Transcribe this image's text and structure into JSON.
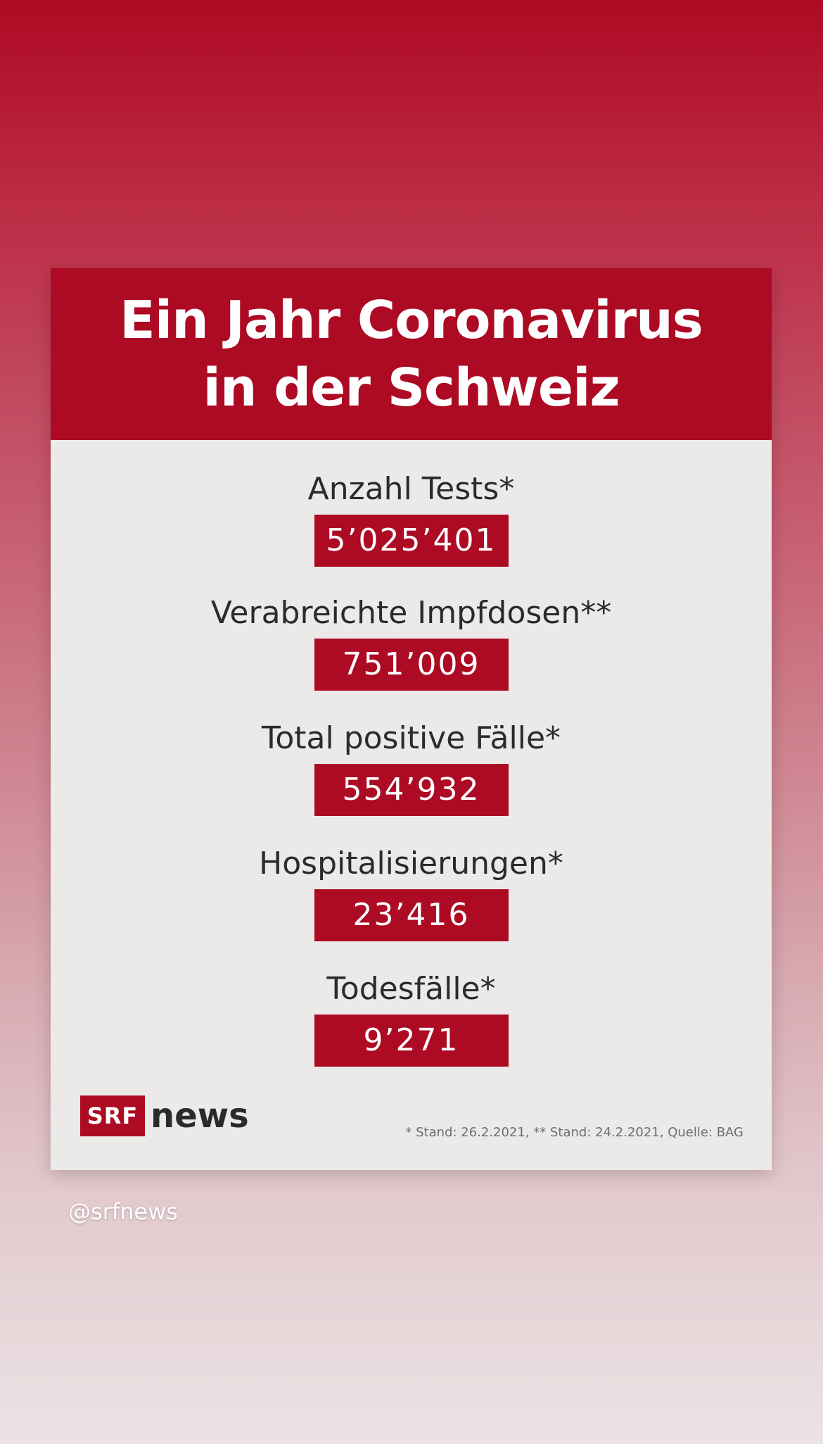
{
  "card": {
    "title_line1": "Ein Jahr Coronavirus",
    "title_line2": "in der Schweiz",
    "stats": [
      {
        "label": "Anzahl Tests*",
        "value": "5’025’401"
      },
      {
        "label": "Verabreichte Impfdosen**",
        "value": "751’009"
      },
      {
        "label": "Total positive Fälle*",
        "value": "554’932"
      },
      {
        "label": "Hospitalisierungen*",
        "value": "23’416"
      },
      {
        "label": "Todesfälle*",
        "value": "9’271"
      }
    ],
    "logo": {
      "box": "SRF",
      "word": "news"
    },
    "footnote": "* Stand: 26.2.2021, ** Stand: 24.2.2021, Quelle: BAG"
  },
  "story": {
    "mention": "@srfnews"
  },
  "colors": {
    "brand_red": "#ad0a24",
    "card_background": "#eceae8",
    "text_dark": "#2b2b2b"
  }
}
